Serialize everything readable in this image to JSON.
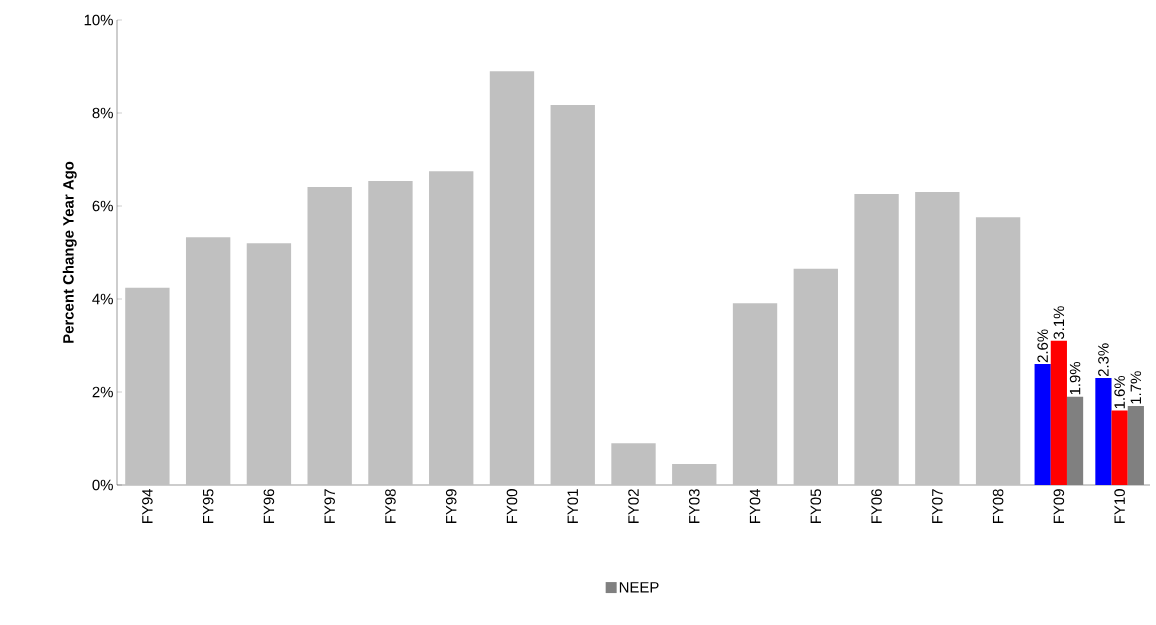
{
  "chart_data": {
    "type": "bar",
    "ylabel": "Percent Change Year Ago",
    "categories": [
      "FY94",
      "FY95",
      "FY96",
      "FY97",
      "FY98",
      "FY99",
      "FY00",
      "FY01",
      "FY02",
      "FY03",
      "FY04",
      "FY05",
      "FY06",
      "FY07",
      "FY08",
      "FY09",
      "FY10"
    ],
    "series": [
      {
        "color": "#c0c0c0",
        "values": [
          4.24,
          5.33,
          5.2,
          6.41,
          6.54,
          6.75,
          8.9,
          8.17,
          0.9,
          0.45,
          3.91,
          4.65,
          6.26,
          6.3,
          5.76,
          null,
          null
        ]
      },
      {
        "color": "#0000ff",
        "values": [
          null,
          null,
          null,
          null,
          null,
          null,
          null,
          null,
          null,
          null,
          null,
          null,
          null,
          null,
          null,
          2.6,
          2.3
        ],
        "value_labels": [
          null,
          null,
          null,
          null,
          null,
          null,
          null,
          null,
          null,
          null,
          null,
          null,
          null,
          null,
          null,
          "2.6%",
          "2.3%"
        ]
      },
      {
        "color": "#ff0000",
        "values": [
          null,
          null,
          null,
          null,
          null,
          null,
          null,
          null,
          null,
          null,
          null,
          null,
          null,
          null,
          null,
          3.1,
          1.6
        ],
        "value_labels": [
          null,
          null,
          null,
          null,
          null,
          null,
          null,
          null,
          null,
          null,
          null,
          null,
          null,
          null,
          null,
          "3.1%",
          "1.6%"
        ]
      },
      {
        "name": "NEEP",
        "color": "#808080",
        "values": [
          null,
          null,
          null,
          null,
          null,
          null,
          null,
          null,
          null,
          null,
          null,
          null,
          null,
          null,
          null,
          1.9,
          1.7
        ],
        "value_labels": [
          null,
          null,
          null,
          null,
          null,
          null,
          null,
          null,
          null,
          null,
          null,
          null,
          null,
          null,
          null,
          "1.9%",
          "1.7%"
        ]
      }
    ],
    "ylim": [
      0,
      10
    ],
    "yticks": [
      {
        "value": 0,
        "label": "0%"
      },
      {
        "value": 2,
        "label": "2%"
      },
      {
        "value": 4,
        "label": "4%"
      },
      {
        "value": 6,
        "label": "6%"
      },
      {
        "value": 8,
        "label": "8%"
      },
      {
        "value": 10,
        "label": "10%"
      }
    ],
    "grid": false,
    "legend": "bottom"
  }
}
